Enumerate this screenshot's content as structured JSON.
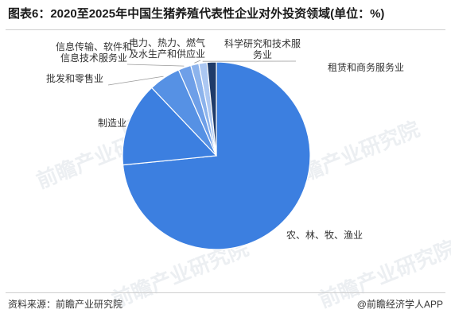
{
  "title": "图表6：2020至2025年中国生猪养殖代表性企业对外投资领域(单位：%)",
  "source": "资料来源：前瞻产业研究院",
  "brand": "@前瞻经济学人APP",
  "watermark": "前瞻产业研究院",
  "chart_data": {
    "type": "pie",
    "title": "图表6：2020至2025年中国生猪养殖代表性企业对外投资领域(单位：%)",
    "slices": [
      {
        "label": "农、林、牧、渔业",
        "lines": [
          "农、林、牧、渔业"
        ],
        "value": 73.5,
        "color": "#3c7fe0"
      },
      {
        "label": "制造业",
        "lines": [
          "制造业"
        ],
        "value": 14.5,
        "color": "#3c7fe0"
      },
      {
        "label": "批发和零售业",
        "lines": [
          "批发和零售业"
        ],
        "value": 5.5,
        "color": "#5691e4"
      },
      {
        "label": "信息传输、软件和信息技术服务业",
        "lines": [
          "信息传输、软件和",
          "信息技术服务业"
        ],
        "value": 2.2,
        "color": "#6e9fe8"
      },
      {
        "label": "电力、热力、燃气及水生产和供应业",
        "lines": [
          "电力、热力、燃气",
          "及水生产和供应业"
        ],
        "value": 1.4,
        "color": "#8cb3ec"
      },
      {
        "label": "科学研究和技术服务业",
        "lines": [
          "科学研究和技术服",
          "务业"
        ],
        "value": 1.4,
        "color": "#abc7f2"
      },
      {
        "label": "租赁和商务服务业",
        "lines": [
          "租赁和商务服务业"
        ],
        "value": 1.6,
        "color": "#1f3b6a"
      }
    ]
  }
}
